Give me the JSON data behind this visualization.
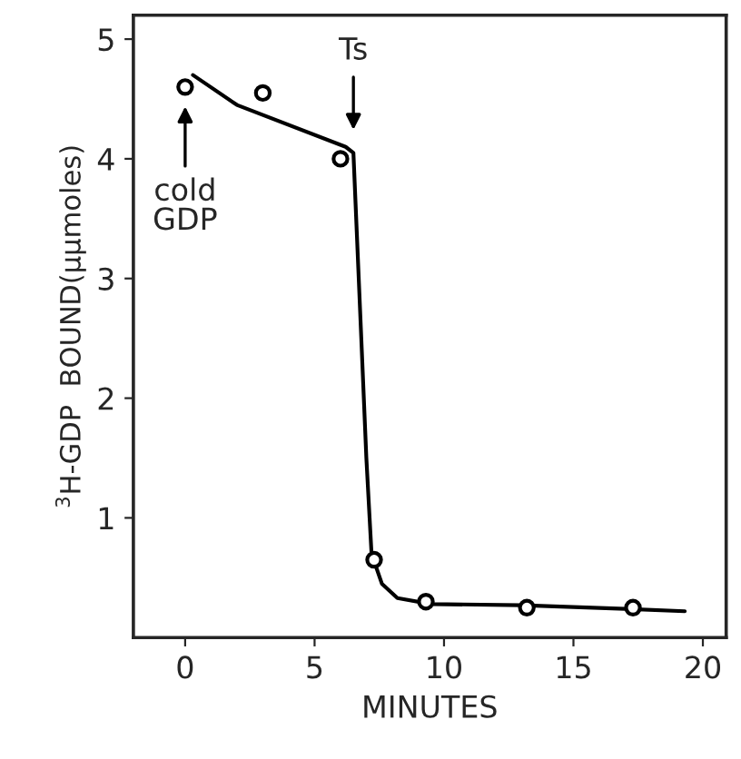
{
  "chart_data": {
    "type": "scatter",
    "xlabel": "MINUTES",
    "ylabel": "$^{3}$H-GDP  BOUND(μμmoles)",
    "xlim": [
      -2,
      20.9
    ],
    "ylim": [
      0,
      5.2
    ],
    "xticks": [
      0,
      5,
      10,
      15,
      20
    ],
    "yticks": [
      1,
      2,
      3,
      4,
      5
    ],
    "grid": false,
    "legend": false,
    "series": [
      {
        "marker": "circle",
        "color": "#000000",
        "x": [
          0,
          3,
          6,
          7.3,
          9.3,
          13.2,
          17.3
        ],
        "values": [
          4.6,
          4.55,
          4.0,
          0.65,
          0.3,
          0.25,
          0.25
        ]
      },
      {
        "type": "line",
        "marker": "none",
        "line_style": "solid",
        "color": "#000000",
        "x": [
          0.3,
          2.0,
          6.2,
          6.5,
          7.0,
          7.2,
          7.6,
          8.2,
          9.5,
          13,
          17,
          19.3
        ],
        "values": [
          4.7,
          4.45,
          4.1,
          4.05,
          1.5,
          0.7,
          0.45,
          0.33,
          0.28,
          0.27,
          0.24,
          0.22
        ]
      }
    ],
    "annotations": [
      {
        "text": "cold\nGDP",
        "x": 0,
        "y": 4.6
      },
      {
        "text": "Ts",
        "x": 6.5,
        "y": 4.1
      }
    ]
  }
}
